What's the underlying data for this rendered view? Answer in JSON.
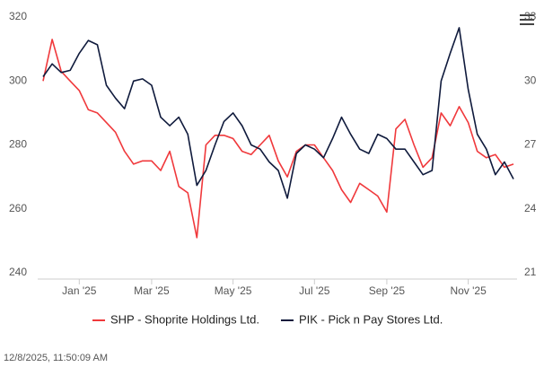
{
  "chart_data": {
    "type": "line",
    "categories": [
      null,
      null,
      null,
      null,
      "Jan '25",
      null,
      null,
      null,
      null,
      null,
      null,
      null,
      "Mar '25",
      null,
      null,
      null,
      null,
      null,
      null,
      null,
      null,
      "May '25",
      null,
      null,
      null,
      null,
      null,
      null,
      null,
      null,
      "Jul '25",
      null,
      null,
      null,
      null,
      null,
      null,
      null,
      "Sep '25",
      null,
      null,
      null,
      null,
      null,
      null,
      null,
      null,
      "Nov '25",
      null,
      null,
      null,
      null,
      null
    ],
    "series": [
      {
        "name": "SHP - Shoprite Holdings Ltd.",
        "color": "#f0393c",
        "axis": "y",
        "values": [
          300,
          313,
          303,
          300,
          297,
          291,
          290,
          287,
          284,
          278,
          274,
          275,
          275,
          272,
          278,
          267,
          265,
          251,
          280,
          283,
          283,
          282,
          278,
          277,
          280,
          283,
          275,
          270,
          278,
          280,
          280,
          276,
          272,
          266,
          262,
          268,
          266,
          264,
          259,
          285,
          288,
          280,
          273,
          276,
          290,
          286,
          292,
          287,
          278,
          276,
          277,
          273,
          274
        ]
      },
      {
        "name": "PIK - Pick n Pay Stores Ltd.",
        "color": "#0f1a3c",
        "axis": "y2",
        "values": [
          30.2,
          30.8,
          30.4,
          30.5,
          31.3,
          31.9,
          31.7,
          29.8,
          29.2,
          28.7,
          30.0,
          30.1,
          29.8,
          28.3,
          27.9,
          28.3,
          27.5,
          25.1,
          25.8,
          27.0,
          28.1,
          28.5,
          27.9,
          27.0,
          26.8,
          26.2,
          25.8,
          24.5,
          26.6,
          27.0,
          26.8,
          26.4,
          27.3,
          28.3,
          27.5,
          26.8,
          26.6,
          27.5,
          27.3,
          26.8,
          26.8,
          26.2,
          25.6,
          25.8,
          30.0,
          31.3,
          32.5,
          29.6,
          27.5,
          26.8,
          25.6,
          26.2,
          25.4
        ]
      }
    ],
    "ylim": [
      240,
      320
    ],
    "yticks": [
      240,
      260,
      280,
      300,
      320
    ],
    "y2lim": [
      21,
      33
    ],
    "y2ticks": [
      21,
      24,
      27,
      30,
      33
    ],
    "timestamp": "12/8/2025, 11:50:09 AM"
  }
}
